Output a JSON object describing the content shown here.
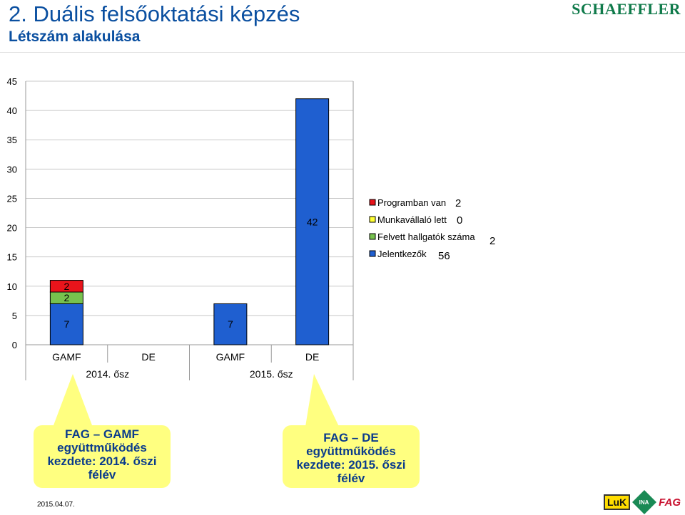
{
  "header": {
    "title": "2. Duális felsőoktatási képzés",
    "subtitle": "Létszám alakulása",
    "brand": "SCHAEFFLER"
  },
  "chart_data": {
    "type": "bar",
    "stacked": true,
    "ylim": [
      0,
      45
    ],
    "yticks": [
      0,
      5,
      10,
      15,
      20,
      25,
      30,
      35,
      40,
      45
    ],
    "categories": [
      "GAMF",
      "DE",
      "GAMF",
      "DE"
    ],
    "groups": [
      {
        "label": "2014. ősz",
        "categories": [
          "GAMF",
          "DE"
        ]
      },
      {
        "label": "2015. ősz",
        "categories": [
          "GAMF",
          "DE"
        ]
      }
    ],
    "series": [
      {
        "name": "Jelentkezők",
        "values": [
          7,
          0,
          7,
          42
        ],
        "color": "#1f5fd0"
      },
      {
        "name": "Felvett hallgatók száma",
        "values": [
          2,
          0,
          0,
          0
        ],
        "color": "#77c24e"
      },
      {
        "name": "Munkavállaló lett",
        "values": [
          0,
          0,
          0,
          0
        ],
        "color": "#ffff33"
      },
      {
        "name": "Programban van",
        "values": [
          2,
          0,
          0,
          0
        ],
        "color": "#e8141b"
      }
    ],
    "data_labels": [
      "7",
      "2",
      "2",
      "7",
      "42"
    ],
    "legend": {
      "position": "right",
      "items": [
        {
          "name": "Programban van",
          "total": "2"
        },
        {
          "name": "Munkavállaló lett",
          "total": "0"
        },
        {
          "name": "Felvett hallgatók száma",
          "total": "2"
        },
        {
          "name": "Jelentkezők",
          "total": "56"
        }
      ]
    }
  },
  "callouts": [
    {
      "lines": [
        "FAG – GAMF",
        "együttműködés",
        "kezdete: 2014. őszi",
        "félév"
      ]
    },
    {
      "lines": [
        "FAG – DE",
        "együttműködés",
        "kezdete: 2015. őszi",
        "félév"
      ]
    }
  ],
  "footer": {
    "date": "2015.04.07.",
    "logos": [
      "LuK",
      "INA",
      "FAG"
    ]
  }
}
